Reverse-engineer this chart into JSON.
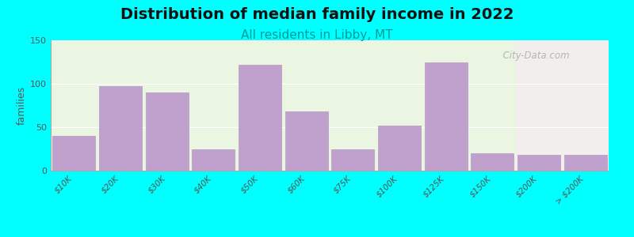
{
  "title": "Distribution of median family income in 2022",
  "subtitle": "All residents in Libby, MT",
  "ylabel": "families",
  "categories": [
    "$10K",
    "$20K",
    "$30K",
    "$40K",
    "$50K",
    "$60K",
    "$75K",
    "$100K",
    "$125K",
    "$150K",
    "$200K",
    "> $200K"
  ],
  "values": [
    40,
    97,
    90,
    25,
    122,
    68,
    25,
    52,
    125,
    20,
    18,
    18
  ],
  "bar_color": "#c0a0cc",
  "bar_edge_color": "#b898c4",
  "ylim": [
    0,
    150
  ],
  "yticks": [
    0,
    50,
    100,
    150
  ],
  "bg_color_left": "#eaf5e2",
  "bg_color_right": "#f2eeee",
  "outer_bg": "#00ffff",
  "title_fontsize": 14,
  "subtitle_fontsize": 11,
  "subtitle_color": "#009999",
  "watermark_text": "  City-Data.com",
  "watermark_color": "#aaaaaa",
  "grid_color": "#ffffff",
  "spine_color": "#aaaaaa"
}
